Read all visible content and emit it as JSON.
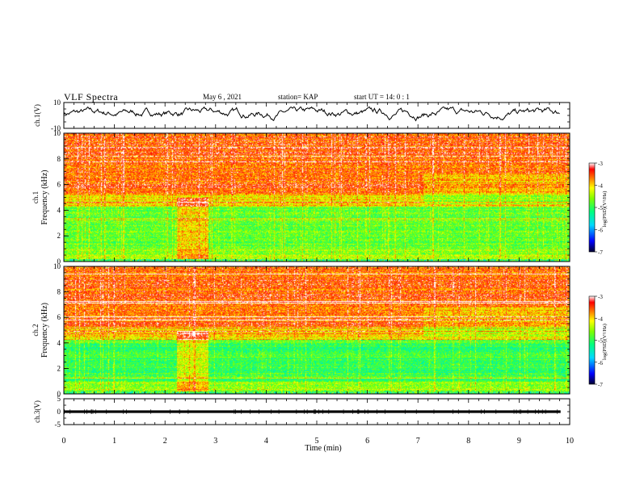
{
  "header": {
    "title": "VLF Spectra",
    "date": "May 6 , 2021",
    "station": "station= KAP",
    "start_ut": "start UT = 14: 0 : 1"
  },
  "chart_data": [
    {
      "type": "line",
      "panel": "waveform-ch1",
      "ylabel": "ch.1(V)",
      "ylim": [
        -10,
        10
      ],
      "yticks": [
        "10",
        "-10"
      ],
      "xlim": [
        0,
        10
      ],
      "note": "noisy waveform between about -4 and 6 V over 0–9.8 min"
    },
    {
      "type": "heatmap",
      "panel": "spectrogram-ch1",
      "ylabel": "ch.1\nFrequency (kHz)",
      "ylim": [
        0,
        10
      ],
      "yticks": [
        "0",
        "2",
        "4",
        "6",
        "8",
        "10"
      ],
      "xlim": [
        0,
        10
      ],
      "colorbar": {
        "label": "log(PSD)(V²/Hz)",
        "range": [
          -7,
          -3
        ],
        "ticks": [
          "-3",
          "-4",
          "-5",
          "-6",
          "-7"
        ]
      }
    },
    {
      "type": "heatmap",
      "panel": "spectrogram-ch2",
      "ylabel": "ch.2\nFrequency (kHz)",
      "ylim": [
        0,
        10
      ],
      "yticks": [
        "0",
        "2",
        "4",
        "6",
        "8",
        "10"
      ],
      "xlim": [
        0,
        10
      ],
      "colorbar": {
        "label": "log(PSD)(V²/Hz)",
        "range": [
          -7,
          -3
        ],
        "ticks": [
          "-3",
          "-4",
          "-5",
          "-6",
          "-7"
        ]
      }
    },
    {
      "type": "line",
      "panel": "waveform-ch3",
      "ylabel": "ch.3(V)",
      "ylim": [
        -5,
        5
      ],
      "yticks": [
        "5",
        "0",
        "-5"
      ],
      "xlim": [
        0,
        10
      ],
      "note": "dense square pulses between about -0.5 and 0.5 V"
    }
  ],
  "xaxis": {
    "label": "Time (min)",
    "ticks": [
      "0",
      "1",
      "2",
      "3",
      "4",
      "5",
      "6",
      "7",
      "8",
      "9",
      "10"
    ]
  },
  "colors": {
    "red": "#ff2a10",
    "orange": "#ff9a00",
    "yellow": "#ffee00",
    "green": "#33e633",
    "cyan": "#00e0e0",
    "blue": "#0000ff",
    "navy": "#000040"
  }
}
